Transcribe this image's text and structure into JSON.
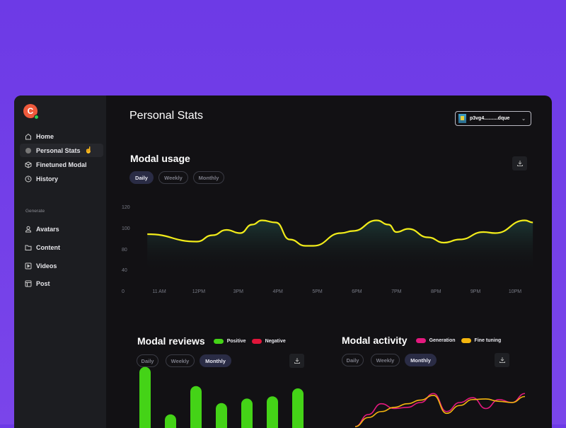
{
  "sidebar": {
    "avatar_letter": "C",
    "items": [
      {
        "label": "Home",
        "icon": "home-icon"
      },
      {
        "label": "Personal Stats",
        "icon": "stats-icon",
        "active": true
      },
      {
        "label": "Finetuned Modal",
        "icon": "cube-icon"
      },
      {
        "label": "History",
        "icon": "clock-icon"
      }
    ],
    "section_label": "Generate",
    "gen_items": [
      {
        "label": "Avatars",
        "icon": "user-icon"
      },
      {
        "label": "Content",
        "icon": "folder-icon"
      },
      {
        "label": "Videos",
        "icon": "video-icon"
      },
      {
        "label": "Post",
        "icon": "layout-icon"
      }
    ]
  },
  "header": {
    "title": "Personal Stats",
    "account": "p3vg4..........dque"
  },
  "usage": {
    "title": "Modal usage",
    "tabs": [
      "Daily",
      "Weekly",
      "Monthly"
    ],
    "selected": "Daily"
  },
  "reviews": {
    "title": "Modal reviews",
    "tabs": [
      "Daily",
      "Weekly",
      "Monthly"
    ],
    "selected": "Monthly",
    "legend": [
      "Positive",
      "Negative"
    ]
  },
  "activity": {
    "title": "Modal activity",
    "tabs": [
      "Daily",
      "Weekly",
      "Monthly"
    ],
    "selected": "Monthly",
    "legend": [
      "Generation",
      "Fine tuning"
    ]
  },
  "colors": {
    "accent_line": "#f2ec1a",
    "positive": "#44d317",
    "negative": "#e0153a",
    "generation": "#e4197f",
    "fine_tuning": "#f4b50e"
  },
  "chart_data": [
    {
      "type": "area",
      "yticks": [
        0,
        40,
        80,
        100,
        120
      ],
      "categories": [
        "11 AM",
        "12PM",
        "3PM",
        "4PM",
        "5PM",
        "6PM",
        "7PM",
        "8PM",
        "9PM",
        "10PM"
      ],
      "points": [
        [
          -0.3,
          94
        ],
        [
          0.95,
          87
        ],
        [
          1.35,
          93
        ],
        [
          1.7,
          98
        ],
        [
          2.05,
          95
        ],
        [
          2.35,
          103
        ],
        [
          2.6,
          107
        ],
        [
          2.95,
          105
        ],
        [
          3.3,
          89
        ],
        [
          3.7,
          83
        ],
        [
          3.9,
          83
        ],
        [
          4.6,
          95
        ],
        [
          4.9,
          97
        ],
        [
          5.5,
          107
        ],
        [
          5.8,
          103
        ],
        [
          6.0,
          96
        ],
        [
          6.3,
          99
        ],
        [
          6.8,
          91
        ],
        [
          7.2,
          86
        ],
        [
          7.6,
          89
        ],
        [
          8.2,
          96
        ],
        [
          8.5,
          95
        ],
        [
          9.25,
          107
        ],
        [
          9.45,
          105
        ]
      ]
    },
    {
      "type": "bar",
      "series": [
        {
          "name": "Positive",
          "values": [
            54,
            12,
            37,
            22,
            26,
            28,
            35
          ]
        },
        {
          "name": "Negative",
          "values": []
        }
      ]
    },
    {
      "type": "line",
      "series": [
        {
          "name": "Generation",
          "values": [
            0,
            20,
            38,
            30,
            32,
            40,
            55,
            25,
            40,
            48,
            30,
            45,
            40,
            55
          ]
        },
        {
          "name": "Fine tuning",
          "values": [
            0,
            15,
            25,
            32,
            38,
            44,
            52,
            22,
            35,
            45,
            46,
            42,
            40,
            50
          ]
        }
      ]
    }
  ]
}
